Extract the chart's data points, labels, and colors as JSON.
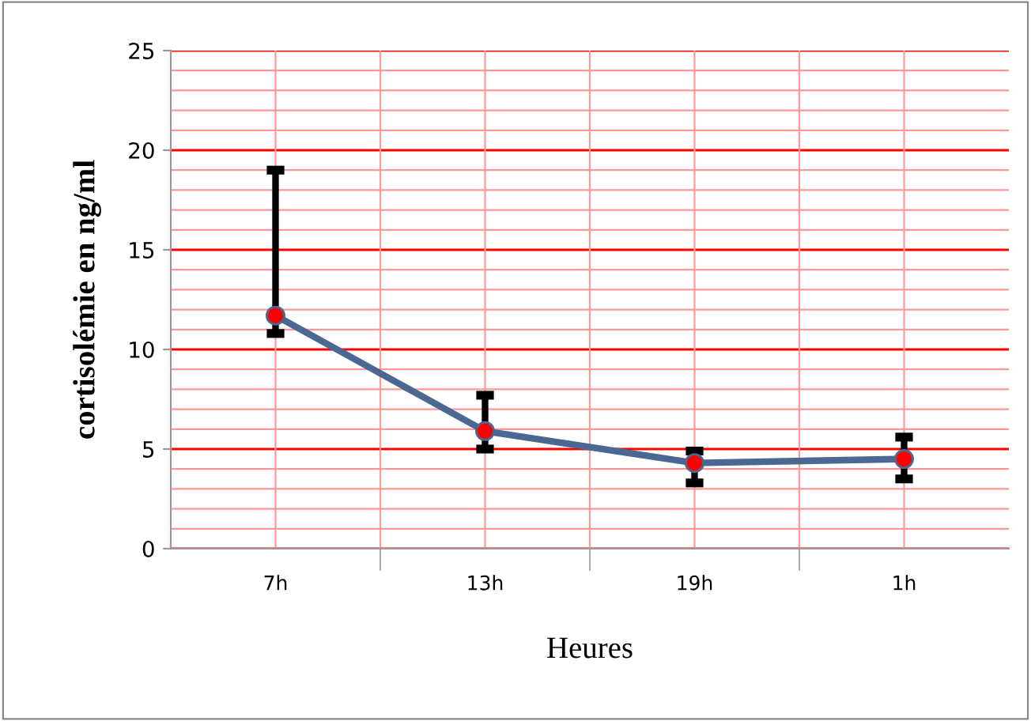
{
  "chart_data": {
    "type": "line",
    "xlabel": "Heures",
    "ylabel": "cortisolémie en ng/ml",
    "categories": [
      "7h",
      "13h",
      "19h",
      "1h"
    ],
    "series": [
      {
        "color": "#4a6891",
        "values": [
          11.7,
          5.9,
          4.3,
          4.5
        ],
        "errors": [
          [
            10.8,
            19.0
          ],
          [
            5.0,
            7.7
          ],
          [
            3.3,
            4.9
          ],
          [
            3.5,
            5.6
          ]
        ]
      }
    ],
    "ylim": [
      0,
      25
    ],
    "yticks": [
      0,
      {
        "value": 1,
        "label": null
      },
      {
        "value": 2,
        "label": null
      },
      {
        "value": 3,
        "label": null
      },
      {
        "value": 4,
        "label": null
      },
      5,
      {
        "value": 6,
        "label": null
      },
      {
        "value": 7,
        "label": null
      },
      {
        "value": 8,
        "label": null
      },
      {
        "value": 9,
        "label": null
      },
      10,
      {
        "value": 11,
        "label": null
      },
      {
        "value": 12,
        "label": null
      },
      {
        "value": 13,
        "label": null
      },
      {
        "value": 14,
        "label": null
      },
      15,
      {
        "value": 16,
        "label": null
      },
      {
        "value": 17,
        "label": null
      },
      {
        "value": 18,
        "label": null
      },
      {
        "value": 19,
        "label": null
      },
      20,
      {
        "value": 21,
        "label": null
      },
      {
        "value": 22,
        "label": null
      },
      {
        "value": 23,
        "label": null
      },
      {
        "value": 24,
        "label": null
      },
      25
    ],
    "grid": true,
    "marker": "circle",
    "line_style": "solid",
    "legend": false
  }
}
